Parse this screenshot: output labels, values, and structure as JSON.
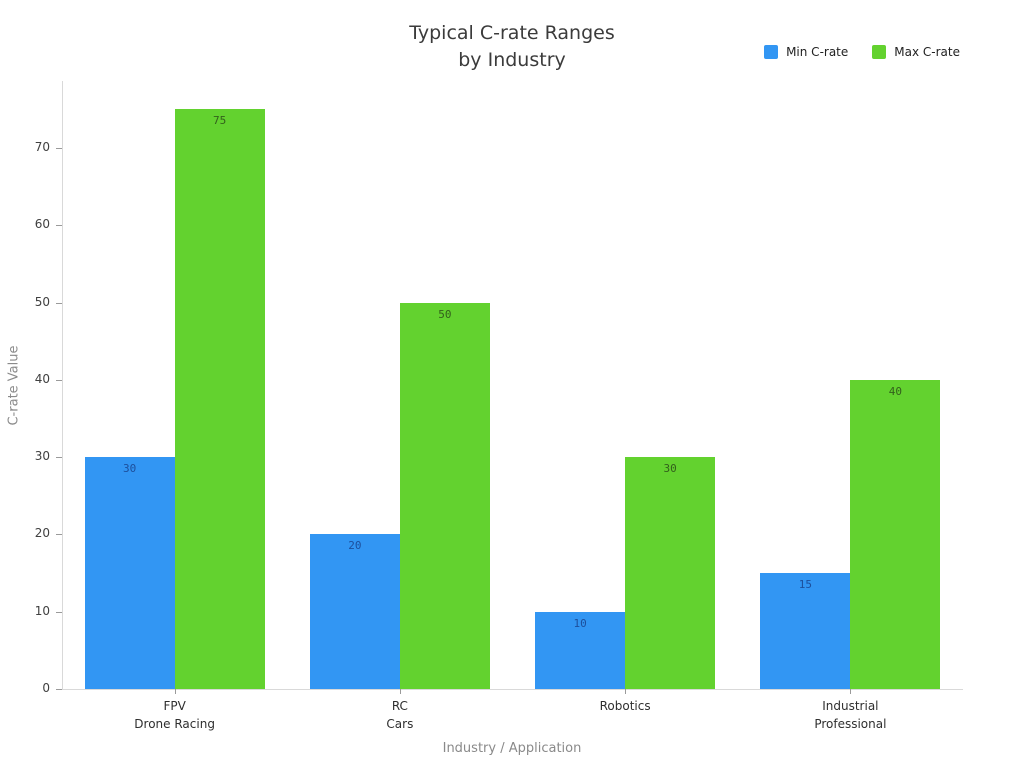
{
  "chart_data": {
    "type": "bar",
    "title": "Typical C-rate Ranges by Industry",
    "title_lines": [
      "Typical C-rate Ranges",
      "by Industry"
    ],
    "xlabel": "Industry / Application",
    "ylabel": "C-rate Value",
    "categories": [
      "FPV Drone Racing",
      "RC Cars",
      "Robotics",
      "Industrial Professional"
    ],
    "category_label_lines": [
      [
        "FPV",
        "Drone Racing"
      ],
      [
        "RC",
        "Cars"
      ],
      [
        "Robotics"
      ],
      [
        "Industrial",
        "Professional"
      ]
    ],
    "series": [
      {
        "name": "Min C-rate",
        "values": [
          30,
          20,
          10,
          15
        ],
        "color": "#3296f3",
        "value_label_color": "#1d4f9c"
      },
      {
        "name": "Max C-rate",
        "values": [
          75,
          50,
          30,
          40
        ],
        "color": "#63d22f",
        "value_label_color": "#33601c"
      }
    ],
    "ylim": [
      0,
      78
    ],
    "yticks": [
      0,
      10,
      20,
      30,
      40,
      50,
      60,
      70
    ],
    "grid": false,
    "legend_position": "top-right",
    "bar_value_labels": true
  },
  "colors": {
    "background": "#ffffff",
    "axis_line": "#d9d9d9",
    "tick_mark": "#9a9a9a",
    "tick_label": "#404040",
    "axis_title": "#8a8a8a",
    "title": "#3b3b3b"
  }
}
